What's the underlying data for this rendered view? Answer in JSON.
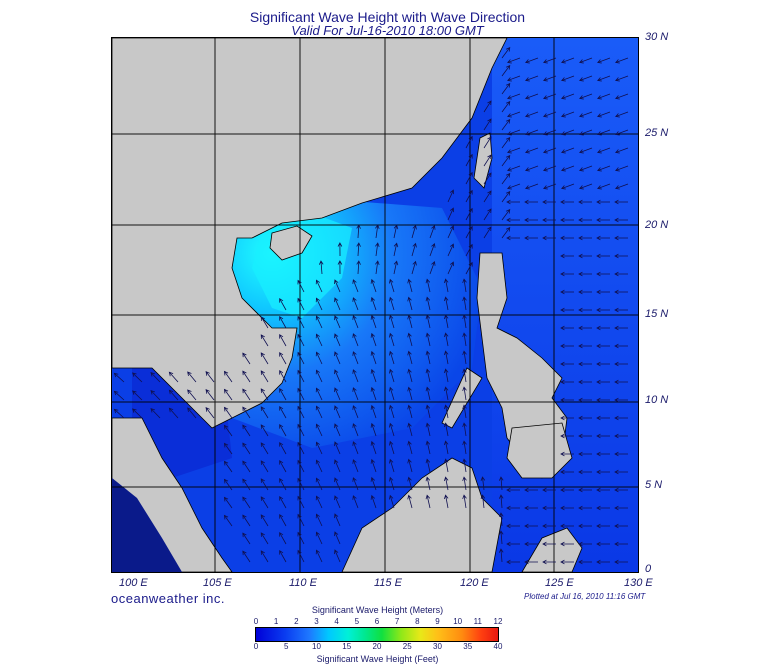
{
  "title": "Significant Wave Height with Wave Direction",
  "subtitle": "Valid For Jul-16-2010 18:00 GMT",
  "lat_labels": [
    "30 N",
    "25 N",
    "20 N",
    "15 N",
    "10 N",
    "5 N",
    "0"
  ],
  "lon_labels": [
    "100 E",
    "105 E",
    "110 E",
    "115 E",
    "120 E",
    "125 E",
    "130 E"
  ],
  "brand": "oceanweather inc.",
  "plotted": "Plotted at Jul 16, 2010 11:16 GMT",
  "colorbar": {
    "meters_label": "Significant Wave Height (Meters)",
    "feet_label": "Significant Wave Height (Feet)",
    "meters_ticks": [
      "0",
      "1",
      "2",
      "3",
      "4",
      "5",
      "6",
      "7",
      "8",
      "9",
      "10",
      "11",
      "12"
    ],
    "feet_ticks": [
      "0",
      "5",
      "10",
      "15",
      "20",
      "25",
      "30",
      "35",
      "40"
    ]
  },
  "colors": {
    "land": "#c8c8c8",
    "low_wave": "#0a2ce0",
    "mid_wave": "#1e6cff",
    "high_wave": "#00e8ff",
    "arrow": "#101050"
  }
}
